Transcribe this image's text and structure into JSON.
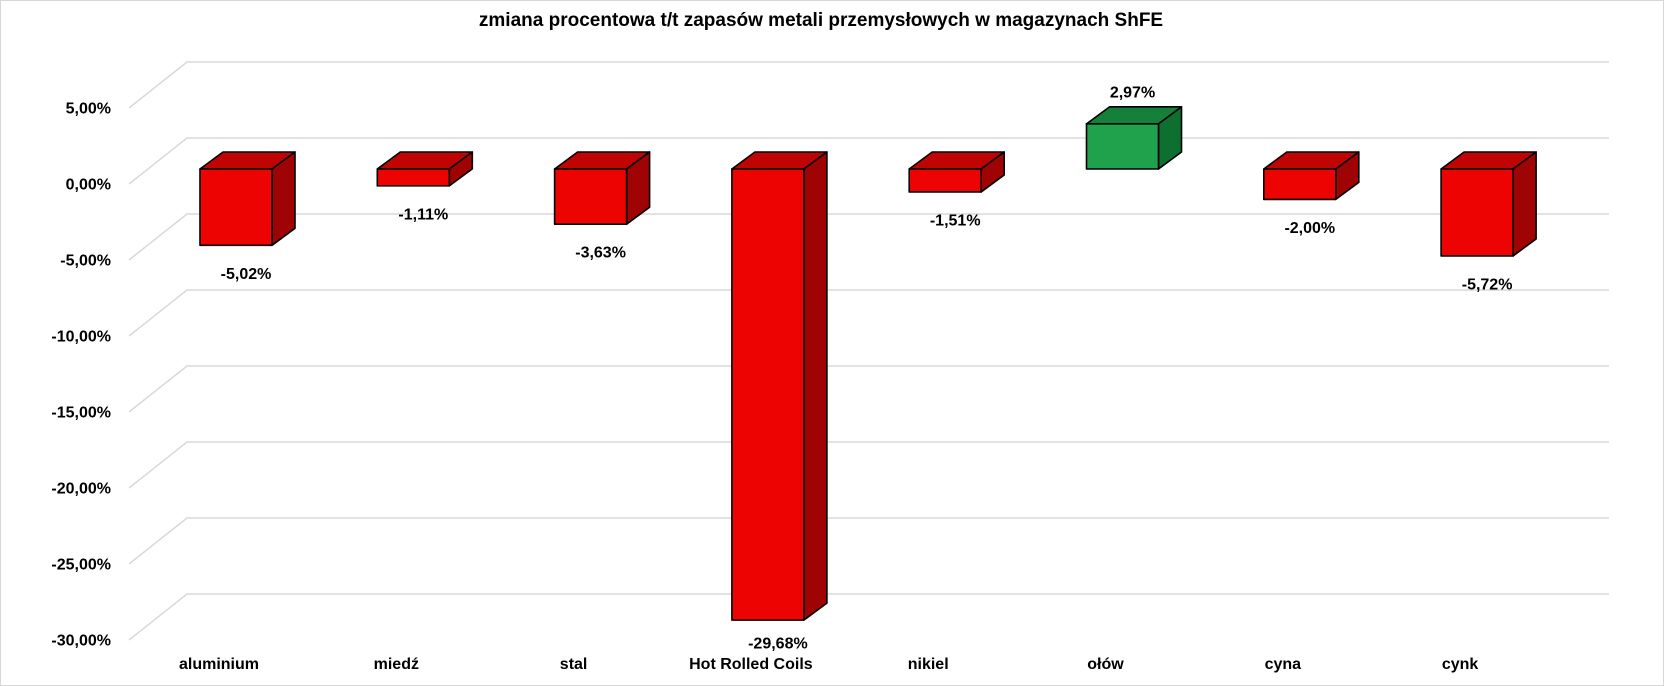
{
  "title": "zmiana procentowa t/t zapasów metali przemysłowych w magazynach ShFE",
  "chart_data": {
    "type": "bar",
    "style": "3d-column",
    "title": "zmiana procentowa t/t zapasów metali przemysłowych w magazynach ShFE",
    "categories": [
      "aluminium",
      "miedź",
      "stal",
      "Hot Rolled Coils",
      "nikiel",
      "ołów",
      "cyna",
      "cynk"
    ],
    "values": [
      -5.02,
      -1.11,
      -3.63,
      -29.68,
      -1.51,
      2.97,
      -2.0,
      -5.72
    ],
    "value_labels": [
      "-5,02%",
      "-1,11%",
      "-3,63%",
      "-29,68%",
      "-1,51%",
      "2,97%",
      "-2,00%",
      "-5,72%"
    ],
    "y_ticks": [
      5,
      0,
      -5,
      -10,
      -15,
      -20,
      -25,
      -30
    ],
    "y_tick_labels": [
      "5,00%",
      "0,00%",
      "-5,00%",
      "-10,00%",
      "-15,00%",
      "-20,00%",
      "-25,00%",
      "-30,00%"
    ],
    "ylim": [
      -30,
      5
    ],
    "xlabel": "",
    "ylabel": "",
    "grid": true,
    "legend": false,
    "colors": {
      "negative_front": "#ee0303",
      "negative_top": "#c00404",
      "negative_side": "#a00303",
      "positive_front": "#1fa24b",
      "positive_top": "#15803a",
      "positive_side": "#0e7030",
      "bar_outline": "#000000",
      "gridline": "#d9d9d9",
      "text": "#000000",
      "background": "#ffffff",
      "border": "#d7d7d7"
    }
  }
}
